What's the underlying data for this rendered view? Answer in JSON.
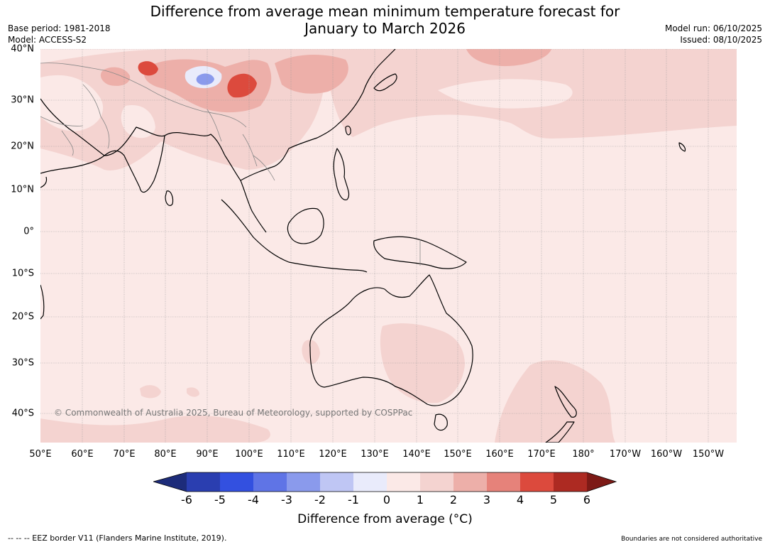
{
  "title": {
    "line1": "Difference from average mean minimum temperature forecast for",
    "line2": "January to March 2026"
  },
  "meta": {
    "base_period": "Base period: 1981-2018",
    "model": "Model: ACCESS-S2",
    "model_run": "Model run: 06/10/2025",
    "issued": "Issued: 08/10/2025"
  },
  "map": {
    "lat_labels": [
      "40°N",
      "30°N",
      "20°N",
      "10°N",
      "0°",
      "10°S",
      "20°S",
      "30°S",
      "40°S"
    ],
    "lon_labels": [
      "50°E",
      "60°E",
      "70°E",
      "80°E",
      "90°E",
      "100°E",
      "110°E",
      "120°E",
      "130°E",
      "140°E",
      "150°E",
      "160°E",
      "170°E",
      "180°",
      "170°W",
      "160°W",
      "150°W"
    ],
    "copyright": "© Commonwealth of Australia 2025, Bureau of Meteorology, supported by COSPPac"
  },
  "colorbar": {
    "ticks": [
      "-6",
      "-5",
      "-4",
      "-3",
      "-2",
      "-1",
      "0",
      "1",
      "2",
      "3",
      "4",
      "5",
      "6"
    ],
    "colors": [
      "#1d2c7a",
      "#2a3eb0",
      "#3350e0",
      "#5f74e6",
      "#8a9aec",
      "#bfc6f4",
      "#e9ebfb",
      "#fbe9e7",
      "#f4d3d0",
      "#edafa9",
      "#e6827a",
      "#dc4a3d",
      "#ad2a22",
      "#7d1a16"
    ],
    "label": "Difference from average (°C)"
  },
  "footer": {
    "eez": "--  --  -- EEZ border V11 (Flanders Marine Institute, 2019).",
    "boundaries": "Boundaries are not considered authoritative"
  }
}
